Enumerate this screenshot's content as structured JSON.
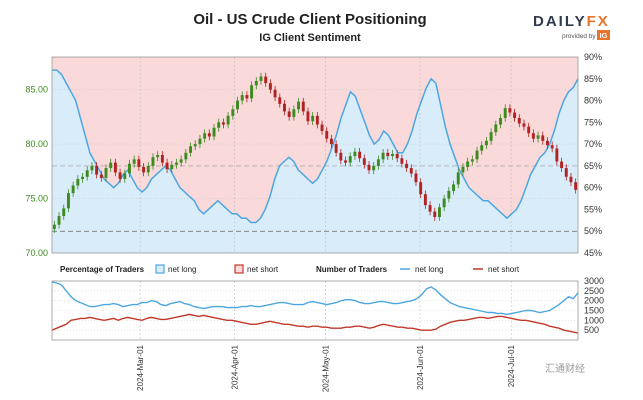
{
  "header": {
    "title": "Oil - US Crude Client Positioning",
    "subtitle": "IG Client Sentiment"
  },
  "logo": {
    "main": "DAILY",
    "accent": "FX",
    "provided_by": "provided by",
    "ig": "IG"
  },
  "legend": {
    "pct_title": "Percentage of Traders",
    "pct_long": "net long",
    "pct_short": "net short",
    "num_title": "Number of Traders",
    "num_long": "net long",
    "num_short": "net short"
  },
  "watermark": "汇通财经",
  "colors": {
    "long": "#4da6e0",
    "short": "#c0392b",
    "long_fill": "#d9ecfa",
    "short_fill": "#f9d9da",
    "candle_up": "#3d8a1f",
    "candle_down": "#b22222",
    "price_axis": "#3d8a1f"
  },
  "chart_data": {
    "type": "line",
    "title": "Oil - US Crude Client Positioning",
    "subtitle": "IG Client Sentiment",
    "x_start": "2024-02-01",
    "x_end": "2024-07-23",
    "x_ticks": [
      "2024-Mar-01",
      "2024-Apr-01",
      "2024-May-01",
      "2024-Jun-01",
      "2024-Jul-01"
    ],
    "price_axis": {
      "ticks": [
        "85.00",
        "80.00",
        "75.00",
        "70.00"
      ],
      "ylim": [
        70,
        88
      ]
    },
    "pct_axis": {
      "ticks": [
        "90%",
        "85%",
        "80%",
        "75%",
        "70%",
        "65%",
        "60%",
        "55%",
        "50%",
        "45%"
      ],
      "ylim": [
        45,
        90
      ]
    },
    "count_axis": {
      "ticks": [
        "3000",
        "2500",
        "2000",
        "1500",
        "1000",
        "500"
      ],
      "ylim": [
        0,
        3000
      ]
    },
    "price_candles_close": [
      72.6,
      73.4,
      74.1,
      75.5,
      76.2,
      76.8,
      77.0,
      77.6,
      78.0,
      77.2,
      76.9,
      77.8,
      78.3,
      77.4,
      76.8,
      77.3,
      78.2,
      78.6,
      77.9,
      77.4,
      78.0,
      78.8,
      79.0,
      78.3,
      77.7,
      78.1,
      78.3,
      78.6,
      79.2,
      79.8,
      80.0,
      80.5,
      81.0,
      80.7,
      81.5,
      82.0,
      81.8,
      82.6,
      83.2,
      84.0,
      84.5,
      84.2,
      85.4,
      85.8,
      86.2,
      85.6,
      85.0,
      84.3,
      83.7,
      83.0,
      82.5,
      83.2,
      83.9,
      83.0,
      82.1,
      82.6,
      81.8,
      81.2,
      80.5,
      80.0,
      79.2,
      78.5,
      78.3,
      78.9,
      79.3,
      78.7,
      78.1,
      77.6,
      78.0,
      78.6,
      79.2,
      78.9,
      79.1,
      78.7,
      78.2,
      77.8,
      77.3,
      76.5,
      75.4,
      74.4,
      73.8,
      73.3,
      74.2,
      75.0,
      75.7,
      76.3,
      77.4,
      77.9,
      78.4,
      78.6,
      79.4,
      79.9,
      80.3,
      81.1,
      81.8,
      82.4,
      83.3,
      82.9,
      82.4,
      81.9,
      81.6,
      81.0,
      80.5,
      80.8,
      80.3,
      79.9,
      79.6,
      78.4,
      77.8,
      77.0,
      76.5,
      75.8
    ],
    "net_long_pct": [
      87,
      87,
      86,
      84,
      82,
      80,
      76,
      72,
      68,
      66,
      64,
      62,
      61,
      60,
      61,
      63,
      64,
      62,
      60,
      59,
      60,
      62,
      63,
      64,
      65,
      64,
      62,
      60,
      59,
      58,
      57,
      55,
      54,
      55,
      56,
      57,
      56,
      55,
      54,
      54,
      53,
      53,
      52,
      52,
      53,
      55,
      58,
      62,
      65,
      66,
      67,
      66,
      64,
      63,
      62,
      61,
      62,
      64,
      66,
      69,
      72,
      76,
      79,
      82,
      81,
      78,
      75,
      72,
      70,
      71,
      73,
      72,
      70,
      68,
      68,
      70,
      73,
      77,
      80,
      83,
      85,
      84,
      79,
      74,
      70,
      67,
      64,
      62,
      60,
      59,
      58,
      57,
      57,
      56,
      55,
      54,
      53,
      54,
      55,
      57,
      60,
      63,
      65,
      67,
      68,
      70,
      73,
      77,
      80,
      82,
      83,
      85
    ],
    "series": [
      {
        "name": "net long",
        "values": [
          2950,
          2900,
          2800,
          2500,
          2200,
          2000,
          1900,
          1800,
          1700,
          1700,
          1750,
          1800,
          1800,
          1850,
          1800,
          1700,
          1750,
          1800,
          1800,
          1900,
          1900,
          2000,
          1950,
          1800,
          1750,
          1850,
          1900,
          1950,
          1850,
          1800,
          1700,
          1650,
          1600,
          1650,
          1700,
          1700,
          1700,
          1650,
          1650,
          1650,
          1700,
          1700,
          1750,
          1700,
          1700,
          1750,
          1800,
          1850,
          1900,
          1900,
          1850,
          1800,
          1800,
          1800,
          1900,
          1950,
          1900,
          1850,
          1800,
          1850,
          1900,
          2000,
          2050,
          2050,
          2000,
          1900,
          1850,
          1850,
          1900,
          1950,
          1950,
          1900,
          1850,
          1850,
          1900,
          1950,
          2000,
          2100,
          2300,
          2600,
          2700,
          2550,
          2300,
          2100,
          1900,
          1800,
          1700,
          1650,
          1600,
          1550,
          1500,
          1450,
          1400,
          1400,
          1350,
          1350,
          1300,
          1350,
          1400,
          1450,
          1500,
          1500,
          1450,
          1400,
          1450,
          1500,
          1650,
          1800,
          2000,
          2200,
          2100,
          2400
        ]
      },
      {
        "name": "net short",
        "values": [
          500,
          600,
          700,
          800,
          1000,
          1050,
          1100,
          1100,
          1150,
          1100,
          1050,
          1000,
          1050,
          1100,
          1000,
          1100,
          1150,
          1100,
          1050,
          1000,
          1100,
          1150,
          1100,
          1050,
          1050,
          1100,
          1150,
          1200,
          1250,
          1300,
          1250,
          1200,
          1250,
          1200,
          1150,
          1100,
          1050,
          1000,
          1000,
          950,
          900,
          850,
          800,
          800,
          850,
          900,
          950,
          900,
          850,
          800,
          800,
          750,
          700,
          700,
          650,
          700,
          700,
          650,
          650,
          600,
          600,
          600,
          650,
          650,
          700,
          700,
          650,
          600,
          650,
          750,
          800,
          750,
          700,
          650,
          650,
          600,
          600,
          550,
          500,
          500,
          500,
          550,
          700,
          800,
          900,
          950,
          1000,
          1000,
          1050,
          1100,
          1150,
          1150,
          1100,
          1150,
          1200,
          1200,
          1150,
          1100,
          1050,
          1000,
          1000,
          950,
          900,
          850,
          800,
          700,
          650,
          600,
          500,
          450,
          400,
          350
        ]
      }
    ]
  }
}
